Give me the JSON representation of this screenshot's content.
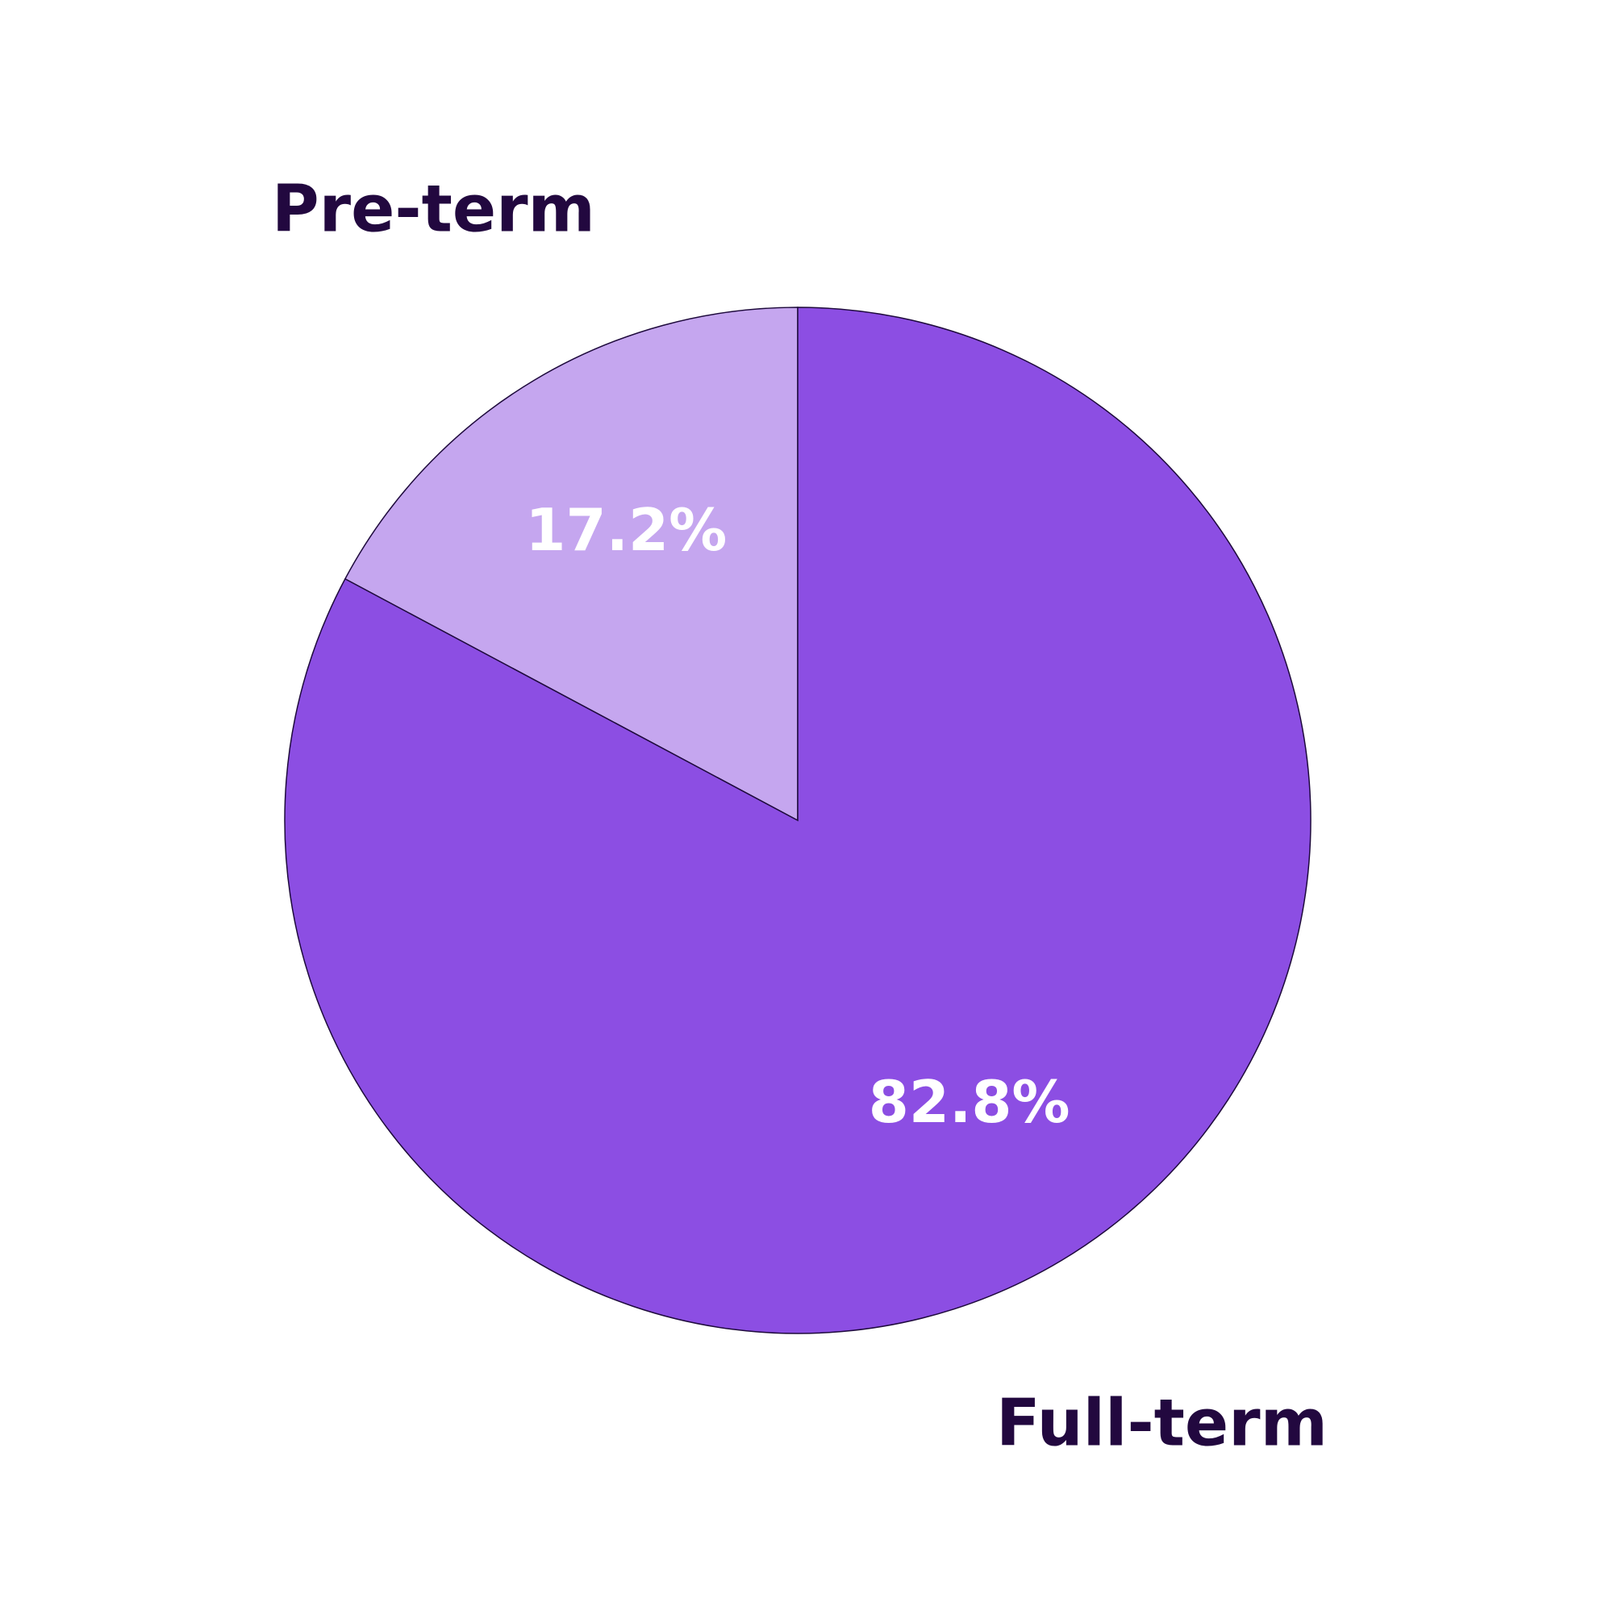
{
  "chart_data": {
    "type": "pie",
    "categories": [
      "Pre-term",
      "Full-term"
    ],
    "values": [
      17.2,
      82.8
    ],
    "value_labels": [
      "17.2%",
      "82.8%"
    ],
    "colors": [
      "#c5a6ef",
      "#8c4ee3"
    ]
  }
}
